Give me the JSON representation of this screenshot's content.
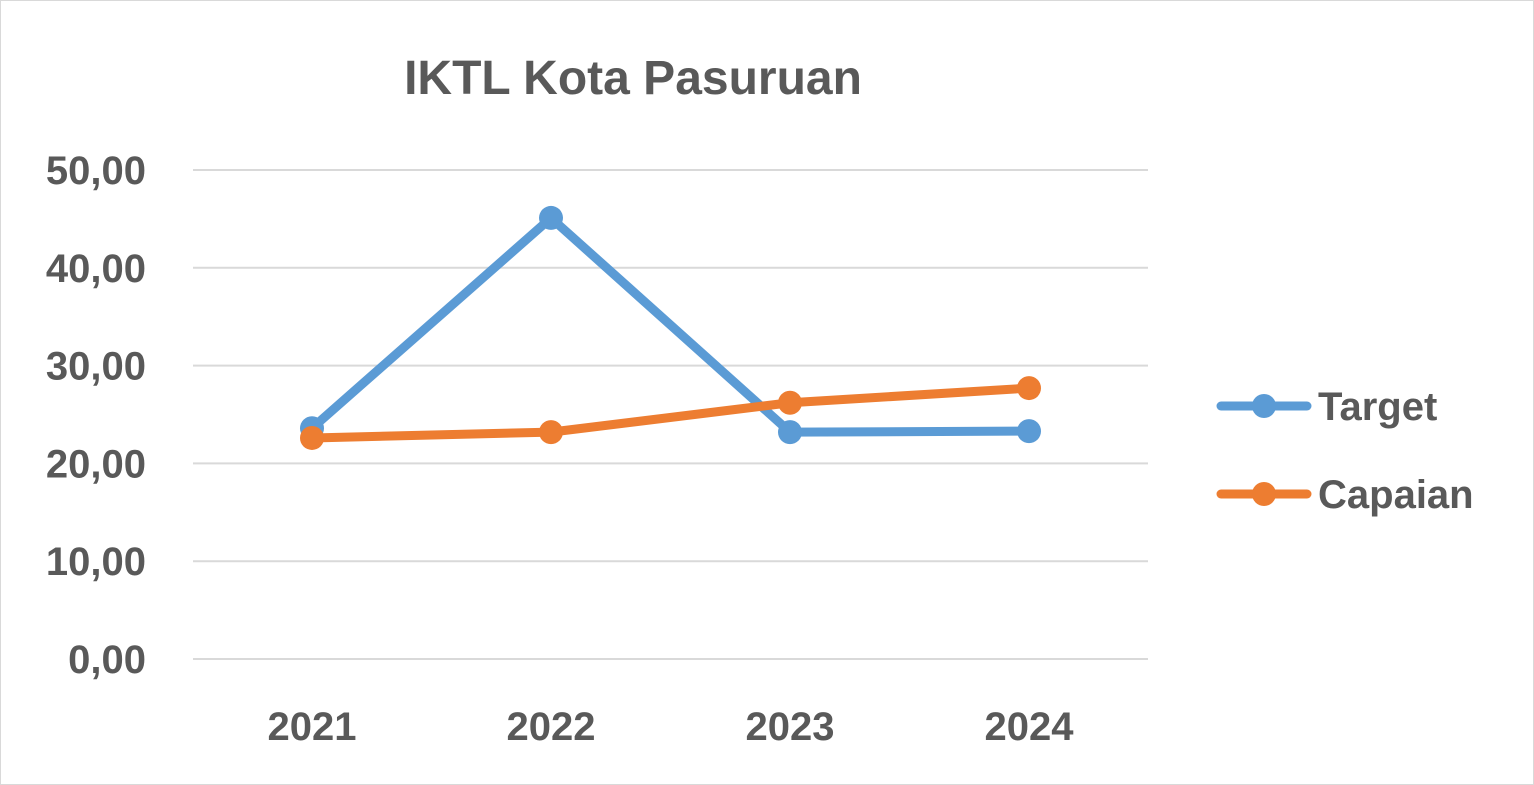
{
  "chart_data": {
    "type": "line",
    "title": "IKTL Kota Pasuruan",
    "xlabel": "",
    "ylabel": "",
    "categories": [
      "2021",
      "2022",
      "2023",
      "2024"
    ],
    "ylim": [
      0,
      50
    ],
    "yticks": [
      "0,00",
      "10,00",
      "20,00",
      "30,00",
      "40,00",
      "50,00"
    ],
    "grid": true,
    "legend": "right",
    "series": [
      {
        "name": "Target",
        "color": "#5b9bd5",
        "values": [
          23.6,
          45.1,
          23.2,
          23.3
        ]
      },
      {
        "name": "Capaian",
        "color": "#ed7d31",
        "values": [
          22.6,
          23.2,
          26.2,
          27.7
        ]
      }
    ]
  }
}
